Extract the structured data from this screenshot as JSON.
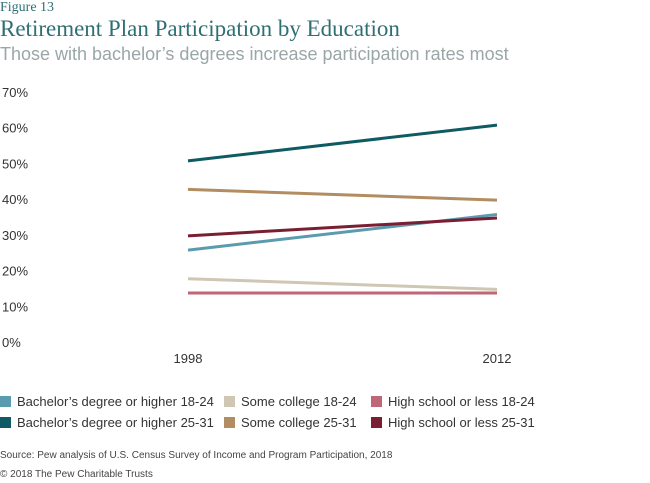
{
  "figure_label": "Figure 13",
  "footer": {
    "source": "Source: Pew analysis of U.S. Census Survey of Income and Program Participation, 2018",
    "copyright": "© 2018 The Pew Charitable Trusts"
  },
  "chart_data": {
    "type": "line",
    "title": "Retirement Plan Participation by Education",
    "subtitle": "Those with bachelor’s degrees increase participation rates most",
    "x": [
      "1998",
      "2012"
    ],
    "ylim": [
      0,
      70
    ],
    "yticks": [
      0,
      10,
      20,
      30,
      40,
      50,
      60,
      70
    ],
    "ytick_labels": [
      "0%",
      "10%",
      "20%",
      "30%",
      "40%",
      "50%",
      "60%",
      "70%"
    ],
    "grid": false,
    "legend_position": "bottom",
    "series": [
      {
        "name": "Bachelor’s degree or higher 18-24",
        "values": [
          26,
          36
        ],
        "color": "#5b9bb0"
      },
      {
        "name": "Some college 18-24",
        "values": [
          18,
          15
        ],
        "color": "#cfc7b3"
      },
      {
        "name": "High school or less 18-24",
        "values": [
          14,
          14
        ],
        "color": "#bf6677"
      },
      {
        "name": "Bachelor’s degree or higher 25-31",
        "values": [
          51,
          61
        ],
        "color": "#0e5b63"
      },
      {
        "name": "Some college 25-31",
        "values": [
          43,
          40
        ],
        "color": "#b28d62"
      },
      {
        "name": "High school or less 25-31",
        "values": [
          30,
          35
        ],
        "color": "#7a1f33"
      }
    ]
  }
}
